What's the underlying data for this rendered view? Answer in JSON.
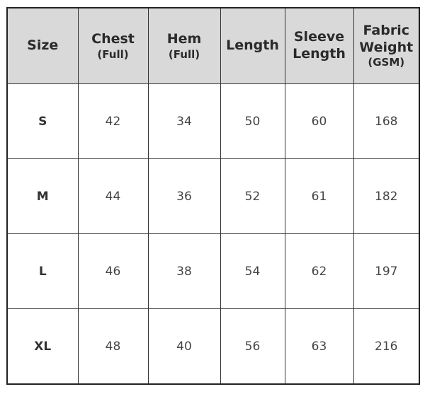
{
  "table": {
    "header_bg": "#d9d9d9",
    "columns": [
      {
        "title": "Size",
        "sub": ""
      },
      {
        "title": "Chest",
        "sub": "(Full)"
      },
      {
        "title": "Hem",
        "sub": "(Full)"
      },
      {
        "title": "Length",
        "sub": ""
      },
      {
        "title": "Sleeve Length",
        "sub": ""
      },
      {
        "title": "Fabric Weight",
        "sub": "(GSM)"
      }
    ],
    "rows": [
      [
        "S",
        "42",
        "34",
        "50",
        "60",
        "168"
      ],
      [
        "M",
        "44",
        "36",
        "52",
        "61",
        "182"
      ],
      [
        "L",
        "46",
        "38",
        "54",
        "62",
        "197"
      ],
      [
        "XL",
        "48",
        "40",
        "56",
        "63",
        "216"
      ]
    ]
  }
}
